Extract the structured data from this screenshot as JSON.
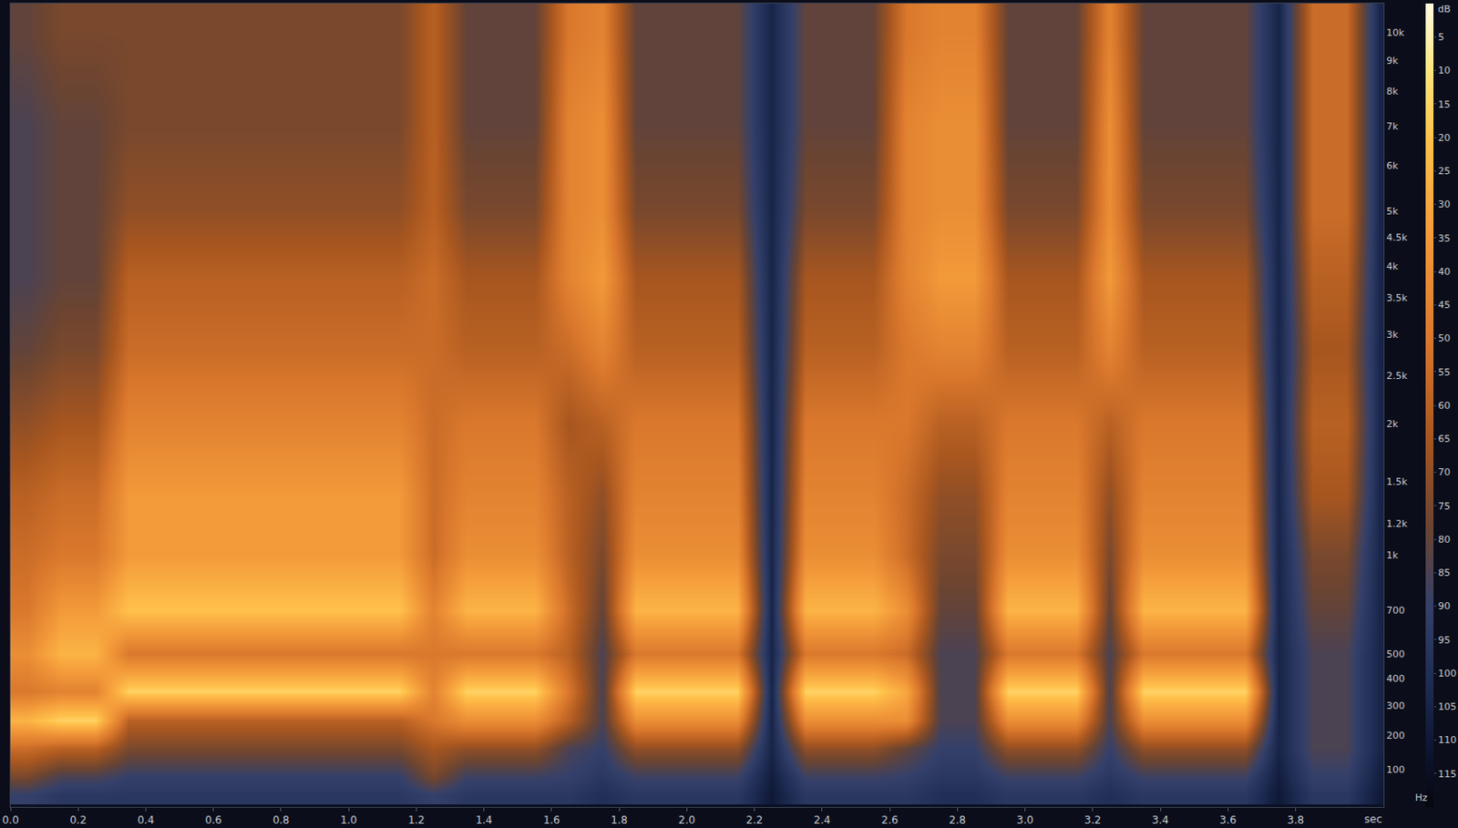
{
  "chart_data": {
    "type": "heatmap",
    "grid": false,
    "xlabel": "sec",
    "ylabel": "Hz",
    "xlim": [
      0,
      4.06
    ],
    "ylim": [
      0,
      11150
    ],
    "xticks": [
      {
        "value": 0,
        "label": "0.0"
      },
      0.2,
      0.4,
      0.6,
      0.8,
      {
        "value": 1,
        "label": "1.0"
      },
      1.2,
      1.4,
      1.6,
      1.8,
      {
        "value": 2,
        "label": "2.0"
      },
      2.2,
      2.4,
      2.6,
      2.8,
      {
        "value": 3,
        "label": "3.0"
      },
      3.2,
      3.4,
      3.6,
      3.8
    ],
    "yticks": [
      100,
      200,
      300,
      400,
      500,
      700,
      {
        "value": 1000,
        "label": "1k"
      },
      {
        "value": 1200,
        "label": "1.2k"
      },
      {
        "value": 1500,
        "label": "1.5k"
      },
      {
        "value": 2000,
        "label": "2k"
      },
      {
        "value": 2500,
        "label": "2.5k"
      },
      {
        "value": 3000,
        "label": "3k"
      },
      {
        "value": 3500,
        "label": "3.5k"
      },
      {
        "value": 4000,
        "label": "4k"
      },
      {
        "value": 4500,
        "label": "4.5k"
      },
      {
        "value": 5000,
        "label": "5k"
      },
      {
        "value": 6000,
        "label": "6k"
      },
      {
        "value": 7000,
        "label": "7k"
      },
      {
        "value": 8000,
        "label": "8k"
      },
      {
        "value": 9000,
        "label": "9k"
      },
      {
        "value": 10000,
        "label": "10k"
      }
    ],
    "colorbar": {
      "title": "dB",
      "range": [
        0,
        120
      ],
      "ticks": [
        5,
        10,
        15,
        20,
        25,
        30,
        35,
        40,
        45,
        50,
        55,
        60,
        65,
        70,
        75,
        80,
        85,
        90,
        95,
        100,
        105,
        110,
        115
      ]
    },
    "x": [
      0.05,
      0.15,
      0.25,
      0.35,
      0.45,
      0.55,
      0.65,
      0.75,
      0.85,
      0.95,
      1.05,
      1.15,
      1.25,
      1.35,
      1.45,
      1.55,
      1.65,
      1.75,
      1.85,
      1.95,
      2.05,
      2.15,
      2.25,
      2.35,
      2.45,
      2.55,
      2.65,
      2.75,
      2.85,
      2.95,
      3.05,
      3.15,
      3.25,
      3.35,
      3.45,
      3.55,
      3.65,
      3.75,
      3.85,
      3.95,
      4.05
    ],
    "y": [
      30,
      80,
      160,
      250,
      350,
      500,
      700,
      1000,
      1400,
      2000,
      2800,
      3800,
      5000,
      7000,
      10000
    ],
    "z": [
      [
        90,
        95,
        95,
        95,
        95,
        95,
        95,
        95,
        95,
        95,
        95,
        95,
        90,
        95,
        95,
        95,
        95,
        100,
        95,
        95,
        95,
        95,
        110,
        95,
        95,
        95,
        95,
        100,
        100,
        95,
        95,
        95,
        100,
        95,
        95,
        95,
        95,
        110,
        95,
        95,
        110
      ],
      [
        75,
        85,
        85,
        90,
        90,
        90,
        90,
        90,
        90,
        90,
        90,
        90,
        75,
        88,
        88,
        88,
        90,
        95,
        88,
        88,
        88,
        88,
        108,
        88,
        88,
        88,
        90,
        95,
        95,
        88,
        88,
        88,
        95,
        88,
        88,
        88,
        88,
        108,
        90,
        90,
        108
      ],
      [
        55,
        60,
        60,
        75,
        75,
        75,
        75,
        75,
        75,
        75,
        75,
        75,
        65,
        70,
        70,
        70,
        85,
        90,
        70,
        70,
        70,
        70,
        105,
        70,
        70,
        70,
        80,
        90,
        90,
        70,
        70,
        70,
        90,
        70,
        70,
        70,
        70,
        105,
        85,
        85,
        105
      ],
      [
        25,
        15,
        15,
        60,
        60,
        60,
        60,
        60,
        60,
        60,
        60,
        60,
        50,
        40,
        40,
        40,
        60,
        85,
        40,
        40,
        40,
        40,
        105,
        40,
        40,
        40,
        40,
        85,
        85,
        40,
        40,
        40,
        85,
        40,
        40,
        40,
        40,
        105,
        85,
        85,
        105
      ],
      [
        50,
        45,
        45,
        15,
        15,
        15,
        15,
        15,
        15,
        15,
        15,
        15,
        45,
        15,
        15,
        15,
        50,
        85,
        15,
        15,
        15,
        15,
        105,
        15,
        15,
        15,
        30,
        85,
        85,
        15,
        15,
        15,
        85,
        15,
        15,
        15,
        15,
        105,
        85,
        85,
        105
      ],
      [
        40,
        25,
        25,
        50,
        50,
        50,
        50,
        50,
        50,
        50,
        50,
        50,
        50,
        50,
        50,
        50,
        60,
        85,
        50,
        50,
        50,
        50,
        105,
        50,
        50,
        50,
        55,
        85,
        85,
        50,
        50,
        50,
        85,
        50,
        50,
        50,
        50,
        105,
        85,
        85,
        105
      ],
      [
        50,
        35,
        35,
        20,
        20,
        20,
        20,
        20,
        20,
        20,
        20,
        20,
        45,
        25,
        25,
        25,
        55,
        80,
        25,
        25,
        25,
        25,
        105,
        25,
        25,
        25,
        40,
        80,
        80,
        25,
        25,
        25,
        80,
        25,
        25,
        25,
        25,
        105,
        80,
        80,
        105
      ],
      [
        55,
        50,
        50,
        35,
        35,
        35,
        35,
        35,
        35,
        35,
        35,
        35,
        55,
        40,
        40,
        40,
        60,
        75,
        40,
        40,
        40,
        40,
        105,
        40,
        40,
        40,
        55,
        75,
        75,
        40,
        40,
        40,
        75,
        40,
        40,
        40,
        40,
        105,
        75,
        75,
        105
      ],
      [
        60,
        55,
        55,
        35,
        35,
        35,
        35,
        35,
        35,
        35,
        35,
        35,
        55,
        45,
        45,
        45,
        60,
        70,
        45,
        45,
        45,
        45,
        105,
        45,
        45,
        45,
        55,
        70,
        70,
        45,
        45,
        45,
        70,
        45,
        45,
        45,
        45,
        105,
        65,
        65,
        105
      ],
      [
        70,
        65,
        65,
        45,
        45,
        45,
        45,
        45,
        45,
        45,
        45,
        45,
        55,
        50,
        50,
        50,
        65,
        60,
        50,
        50,
        50,
        50,
        105,
        50,
        50,
        50,
        50,
        60,
        60,
        50,
        50,
        50,
        60,
        50,
        50,
        50,
        50,
        105,
        60,
        60,
        105
      ],
      [
        80,
        75,
        75,
        55,
        55,
        55,
        55,
        55,
        55,
        55,
        55,
        55,
        55,
        60,
        60,
        60,
        55,
        45,
        60,
        60,
        60,
        60,
        105,
        60,
        60,
        60,
        50,
        45,
        45,
        60,
        60,
        60,
        45,
        60,
        60,
        60,
        60,
        105,
        65,
        65,
        105
      ],
      [
        85,
        80,
        80,
        60,
        60,
        60,
        60,
        60,
        60,
        60,
        60,
        60,
        55,
        65,
        65,
        65,
        45,
        35,
        65,
        65,
        65,
        65,
        105,
        65,
        65,
        65,
        45,
        35,
        35,
        65,
        65,
        65,
        35,
        65,
        65,
        65,
        65,
        105,
        60,
        60,
        105
      ],
      [
        85,
        80,
        80,
        70,
        70,
        70,
        70,
        70,
        70,
        70,
        70,
        70,
        60,
        75,
        75,
        75,
        45,
        40,
        75,
        75,
        75,
        75,
        105,
        75,
        75,
        75,
        45,
        40,
        40,
        75,
        75,
        75,
        40,
        75,
        75,
        75,
        75,
        105,
        55,
        55,
        105
      ],
      [
        85,
        80,
        80,
        75,
        75,
        75,
        75,
        75,
        75,
        75,
        75,
        75,
        60,
        80,
        80,
        80,
        45,
        40,
        80,
        80,
        80,
        80,
        105,
        80,
        80,
        80,
        45,
        40,
        40,
        80,
        80,
        80,
        40,
        80,
        80,
        80,
        80,
        105,
        55,
        55,
        105
      ],
      [
        80,
        75,
        75,
        75,
        75,
        75,
        75,
        75,
        75,
        75,
        75,
        75,
        60,
        80,
        80,
        80,
        50,
        45,
        80,
        80,
        80,
        80,
        105,
        80,
        80,
        80,
        50,
        45,
        45,
        80,
        80,
        80,
        45,
        80,
        80,
        80,
        80,
        105,
        55,
        55,
        105
      ]
    ]
  }
}
